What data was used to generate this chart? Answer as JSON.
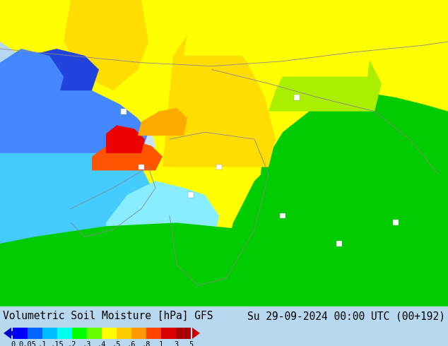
{
  "title_left": "Volumetric Soil Moisture [hPa] GFS",
  "title_right": "Su 29-09-2024 00:00 UTC (00+192)",
  "colorbar_tick_labels": [
    "0",
    "0.05",
    ".1",
    ".15",
    ".2",
    ".3",
    ".4",
    ".5",
    ".6",
    ".8",
    "1",
    "3",
    "5"
  ],
  "colorbar_colors": [
    "#0000ff",
    "#0066ff",
    "#00bbff",
    "#00ffee",
    "#00ff00",
    "#66ff00",
    "#ffff00",
    "#ffcc00",
    "#ff9900",
    "#ff4400",
    "#dd0000",
    "#aa0000"
  ],
  "arrow_left_color": "#0000cc",
  "arrow_right_color": "#cc0000",
  "background_color": "#b8d8f0",
  "ocean_color": "#c8e4f4",
  "font_family": "monospace",
  "title_fontsize": 10.5,
  "colorbar_label_fontsize": 7.5,
  "map_colors": {
    "deep_blue": "#2244dd",
    "blue": "#4488ff",
    "cyan": "#44ccff",
    "light_cyan": "#88eeff",
    "green": "#00cc00",
    "yellow_green": "#aaee00",
    "yellow": "#ffff00",
    "orange_yellow": "#ffdd00",
    "orange": "#ffaa00",
    "red_orange": "#ff5500",
    "red": "#ee0000",
    "dark_red": "#cc0000",
    "gray": "#aaaaaa",
    "light_gray": "#cccccc"
  }
}
